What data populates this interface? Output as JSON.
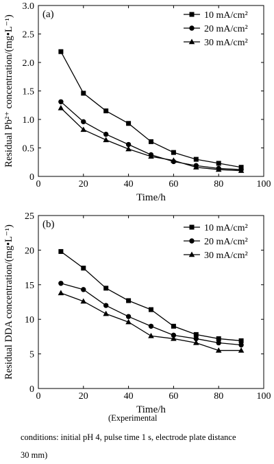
{
  "chart_data": [
    {
      "type": "line",
      "panel_label": "(a)",
      "xlabel": "Time/h",
      "ylabel": "Residual Pb²⁺ concentration/(mg•L⁻¹)",
      "xlim": [
        0,
        100
      ],
      "ylim": [
        0,
        3.0
      ],
      "xticks": [
        "0",
        "20",
        "40",
        "60",
        "80",
        "100"
      ],
      "yticks": [
        "0",
        "0.5",
        "1.0",
        "1.5",
        "2.0",
        "2.5",
        "3.0"
      ],
      "grid": false,
      "legend_position": "top-right",
      "x": [
        10,
        20,
        30,
        40,
        50,
        60,
        70,
        80,
        90
      ],
      "series": [
        {
          "name": "10 mA/cm²",
          "marker": "square",
          "values": [
            2.19,
            1.46,
            1.15,
            0.93,
            0.61,
            0.42,
            0.3,
            0.23,
            0.16
          ]
        },
        {
          "name": "20 mA/cm²",
          "marker": "circle",
          "values": [
            1.31,
            0.96,
            0.74,
            0.56,
            0.38,
            0.26,
            0.19,
            0.14,
            0.12
          ]
        },
        {
          "name": "30 mA/cm²",
          "marker": "triangle",
          "values": [
            1.2,
            0.82,
            0.64,
            0.48,
            0.35,
            0.28,
            0.16,
            0.12,
            0.1
          ]
        }
      ]
    },
    {
      "type": "line",
      "panel_label": "(b)",
      "xlabel": "Time/h",
      "ylabel": "Residual DDA concentration/(mg•L⁻¹)",
      "xlim": [
        0,
        100
      ],
      "ylim": [
        0,
        25
      ],
      "xticks": [
        "0",
        "20",
        "40",
        "60",
        "80",
        "100"
      ],
      "yticks": [
        "0",
        "5",
        "10",
        "15",
        "20",
        "25"
      ],
      "grid": false,
      "legend_position": "top-right",
      "x": [
        10,
        20,
        30,
        40,
        50,
        60,
        70,
        80,
        90
      ],
      "series": [
        {
          "name": "10 mA/cm²",
          "marker": "square",
          "values": [
            19.8,
            17.4,
            14.5,
            12.7,
            11.4,
            9.0,
            7.8,
            7.2,
            6.9
          ]
        },
        {
          "name": "20 mA/cm²",
          "marker": "circle",
          "values": [
            15.2,
            14.3,
            12.0,
            10.4,
            9.0,
            7.7,
            7.2,
            6.6,
            6.3
          ]
        },
        {
          "name": "30 mA/cm²",
          "marker": "triangle",
          "values": [
            13.8,
            12.6,
            10.8,
            9.6,
            7.6,
            7.2,
            6.6,
            5.5,
            5.5
          ]
        }
      ]
    }
  ],
  "caption": {
    "line1": "(Experimental",
    "line2": "conditions: initial pH 4, pulse time 1 s, electrode plate distance",
    "line3": "30 mm)"
  }
}
